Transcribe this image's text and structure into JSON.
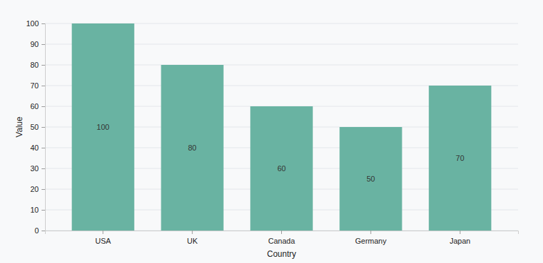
{
  "chart_data": {
    "type": "bar",
    "categories": [
      "USA",
      "UK",
      "Canada",
      "Germany",
      "Japan"
    ],
    "values": [
      100,
      80,
      60,
      50,
      70
    ],
    "color": "#69b3a2",
    "x_label": "Country",
    "y_label": "Value",
    "ylim": [
      0,
      100
    ],
    "yticks": [
      0,
      10,
      20,
      30,
      40,
      50,
      60,
      70,
      80,
      90,
      100
    ],
    "grid": true,
    "data_labels": true
  }
}
